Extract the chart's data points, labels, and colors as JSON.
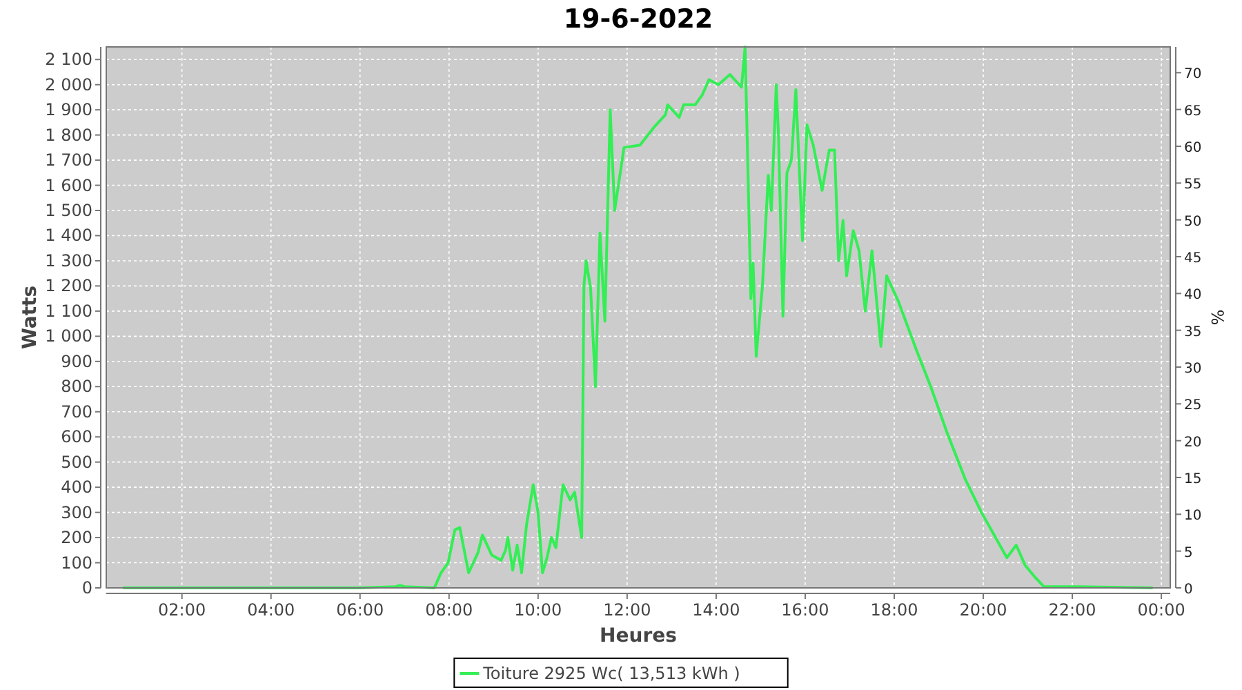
{
  "chart_data": {
    "type": "line",
    "title": "19-6-2022",
    "xlabel": "Heures",
    "ylabel": "Watts",
    "y2label": "%",
    "xlim": [
      0.3,
      24.2
    ],
    "ylim": [
      0,
      2150
    ],
    "y2lim": [
      0,
      73.5
    ],
    "xticks": [
      {
        "value": 2,
        "label": "02:00"
      },
      {
        "value": 4,
        "label": "04:00"
      },
      {
        "value": 6,
        "label": "06:00"
      },
      {
        "value": 8,
        "label": "08:00"
      },
      {
        "value": 10,
        "label": "10:00"
      },
      {
        "value": 12,
        "label": "12:00"
      },
      {
        "value": 14,
        "label": "14:00"
      },
      {
        "value": 16,
        "label": "16:00"
      },
      {
        "value": 18,
        "label": "18:00"
      },
      {
        "value": 20,
        "label": "20:00"
      },
      {
        "value": 22,
        "label": "22:00"
      },
      {
        "value": 24,
        "label": "00:00"
      }
    ],
    "yticks": [
      0,
      100,
      200,
      300,
      400,
      500,
      600,
      700,
      800,
      900,
      {
        "value": 1000,
        "label": "1 000"
      },
      {
        "value": 1100,
        "label": "1 100"
      },
      {
        "value": 1200,
        "label": "1 200"
      },
      {
        "value": 1300,
        "label": "1 300"
      },
      {
        "value": 1400,
        "label": "1 400"
      },
      {
        "value": 1500,
        "label": "1 500"
      },
      {
        "value": 1600,
        "label": "1 600"
      },
      {
        "value": 1700,
        "label": "1 700"
      },
      {
        "value": 1800,
        "label": "1 800"
      },
      {
        "value": 1900,
        "label": "1 900"
      },
      {
        "value": 2000,
        "label": "2 000"
      },
      {
        "value": 2100,
        "label": "2 100"
      }
    ],
    "y2ticks": [
      0,
      5,
      10,
      15,
      20,
      25,
      30,
      35,
      40,
      45,
      50,
      55,
      60,
      65,
      70
    ],
    "grid": true,
    "legend": "bottom",
    "marker": "none",
    "line_style": "solid",
    "series": [
      {
        "name": "Toiture 2925 Wc( 13,513 kWh )",
        "color": "#33ee55",
        "x": [
          0.69,
          2,
          4,
          6,
          6.8,
          6.9,
          7.0,
          7.67,
          7.82,
          7.98,
          8.13,
          8.24,
          8.34,
          8.44,
          8.65,
          8.75,
          8.96,
          9.17,
          9.27,
          9.32,
          9.43,
          9.53,
          9.63,
          9.74,
          9.89,
          10.0,
          10.1,
          10.2,
          10.3,
          10.4,
          10.56,
          10.72,
          10.82,
          10.98,
          11.03,
          11.08,
          11.18,
          11.29,
          11.39,
          11.5,
          11.62,
          11.72,
          11.93,
          12.29,
          12.6,
          12.86,
          12.91,
          13.17,
          13.27,
          13.53,
          13.69,
          13.84,
          14.05,
          14.31,
          14.57,
          14.65,
          14.78,
          14.83,
          14.9,
          15.04,
          15.17,
          15.24,
          15.35,
          15.4,
          15.5,
          15.59,
          15.69,
          15.79,
          15.94,
          16.04,
          16.18,
          16.38,
          16.54,
          16.66,
          16.75,
          16.85,
          16.93,
          17.08,
          17.21,
          17.35,
          17.5,
          17.7,
          17.83,
          18.09,
          18.51,
          18.82,
          19.18,
          19.6,
          19.96,
          20.53,
          20.74,
          20.94,
          21.15,
          21.36,
          22.13,
          23.79
        ],
        "values": [
          0,
          0,
          0,
          0,
          5,
          10,
          5,
          0,
          60,
          100,
          230,
          240,
          150,
          60,
          140,
          210,
          130,
          110,
          150,
          200,
          70,
          170,
          60,
          250,
          410,
          300,
          60,
          120,
          200,
          160,
          410,
          350,
          380,
          200,
          1200,
          1300,
          1190,
          800,
          1410,
          1060,
          1900,
          1500,
          1750,
          1760,
          1830,
          1880,
          1920,
          1870,
          1920,
          1920,
          1960,
          2020,
          2000,
          2040,
          1990,
          2150,
          1150,
          1290,
          920,
          1200,
          1640,
          1500,
          2000,
          1800,
          1080,
          1650,
          1700,
          1980,
          1380,
          1840,
          1760,
          1580,
          1740,
          1740,
          1300,
          1460,
          1240,
          1420,
          1340,
          1100,
          1340,
          960,
          1240,
          1140,
          940,
          800,
          620,
          430,
          300,
          120,
          170,
          90,
          45,
          5,
          5,
          0
        ]
      }
    ]
  }
}
